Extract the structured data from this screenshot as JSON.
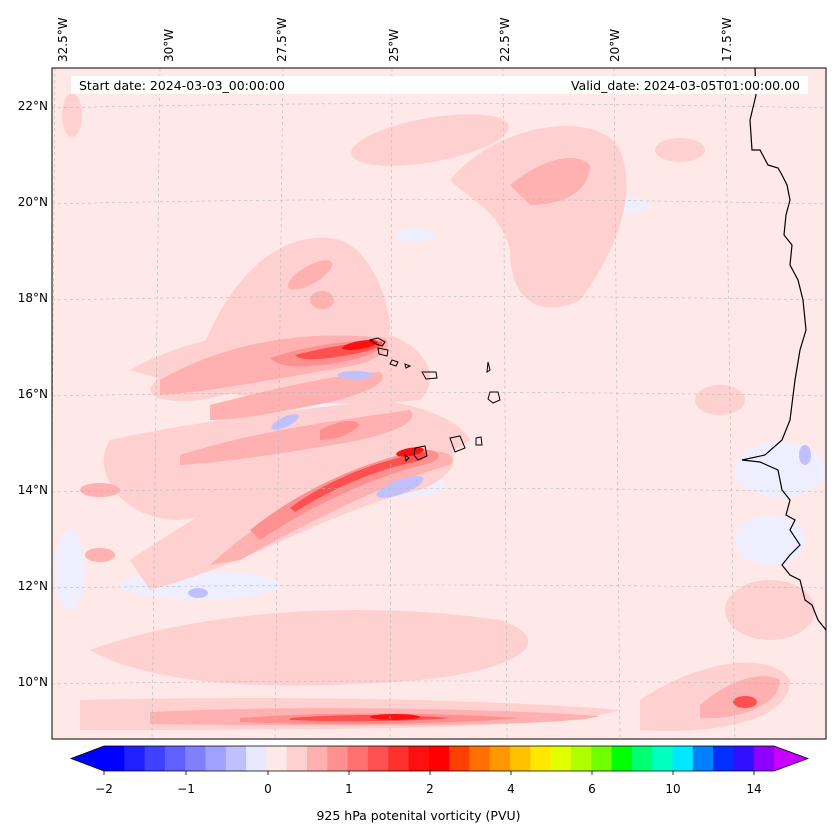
{
  "map": {
    "start_date": "Start date: 2024-03-03_00:00:00",
    "valid_date": "Valid_date: 2024-03-05T01:00:00.00",
    "lon_labels": [
      "32.5°W",
      "30°W",
      "27.5°W",
      "25°W",
      "22.5°W",
      "20°W",
      "17.5°W"
    ],
    "lat_labels": [
      "22°N",
      "20°N",
      "18°N",
      "16°N",
      "14°N",
      "12°N",
      "10°N"
    ],
    "field": "925 hPa potential vorticity",
    "colors": {
      "background_low_positive": "#ffe8e8",
      "coastline": "#000000",
      "gridline": "#b0b0b0"
    }
  },
  "colorbar": {
    "title": "925 hPa potenital vorticity (PVU)",
    "tick_labels": [
      "−2",
      "−1",
      "0",
      "1",
      "2",
      "4",
      "6",
      "10",
      "14"
    ],
    "colors": [
      "#0000ff",
      "#2020ff",
      "#4040ff",
      "#6060ff",
      "#8080ff",
      "#a0a0ff",
      "#c0c0ff",
      "#e8e8ff",
      "#ffe8e8",
      "#ffd0d0",
      "#ffb0b0",
      "#ff9090",
      "#ff7070",
      "#ff5050",
      "#ff3030",
      "#ff1010",
      "#ff0000",
      "#ff4000",
      "#ff7000",
      "#ff9800",
      "#ffc000",
      "#ffe800",
      "#e0ff00",
      "#b0ff00",
      "#70ff00",
      "#00ff00",
      "#00ff70",
      "#00ffc0",
      "#00e8ff",
      "#0080ff",
      "#0030ff",
      "#3010ff",
      "#9000ff"
    ],
    "extend_low_color": "#0000ff",
    "extend_high_color": "#c800ff"
  }
}
